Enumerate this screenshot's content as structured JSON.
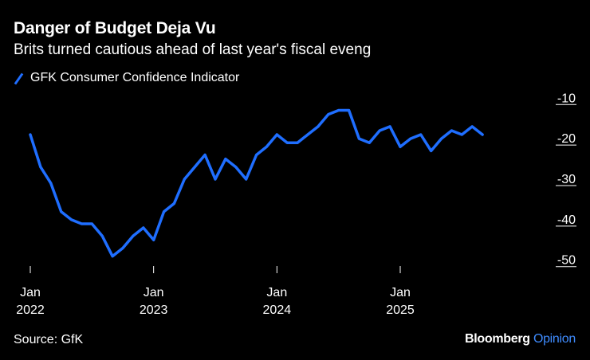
{
  "chart_data": {
    "type": "line",
    "title": "Danger of Budget Deja Vu",
    "subtitle": "Brits turned cautious ahead of last year's fiscal eveng",
    "legend": "GFK Consumer Confidence Indicator",
    "series_color": "#1f6eff",
    "ylim": [
      -53,
      -7
    ],
    "yticks": [
      -10,
      -20,
      -30,
      -40,
      -50
    ],
    "ytick_labels": [
      "-10",
      "-20",
      "-30",
      "-40",
      "-50"
    ],
    "xlim": [
      0,
      46
    ],
    "xticks": [
      {
        "month": 0,
        "label1": "Jan",
        "label2": "2022"
      },
      {
        "month": 12,
        "label1": "Jan",
        "label2": "2023"
      },
      {
        "month": 24,
        "label1": "Jan",
        "label2": "2024"
      },
      {
        "month": 36,
        "label1": "Jan",
        "label2": "2025"
      }
    ],
    "values": [
      -19,
      -27,
      -31,
      -38,
      -40,
      -41,
      -41,
      -44,
      -49,
      -47,
      -44,
      -42,
      -45,
      -38,
      -36,
      -30,
      -27,
      -24,
      -30,
      -25,
      -27,
      -30,
      -24,
      -22,
      -19,
      -21,
      -21,
      -19,
      -17,
      -14,
      -13,
      -13,
      -20,
      -21,
      -18,
      -17,
      -22,
      -20,
      -19,
      -23,
      -20,
      -18,
      -19,
      -17,
      -19
    ]
  },
  "footer": {
    "source": "Source: GfK",
    "brand": "Bloomberg",
    "brand_suffix": "Opinion"
  }
}
